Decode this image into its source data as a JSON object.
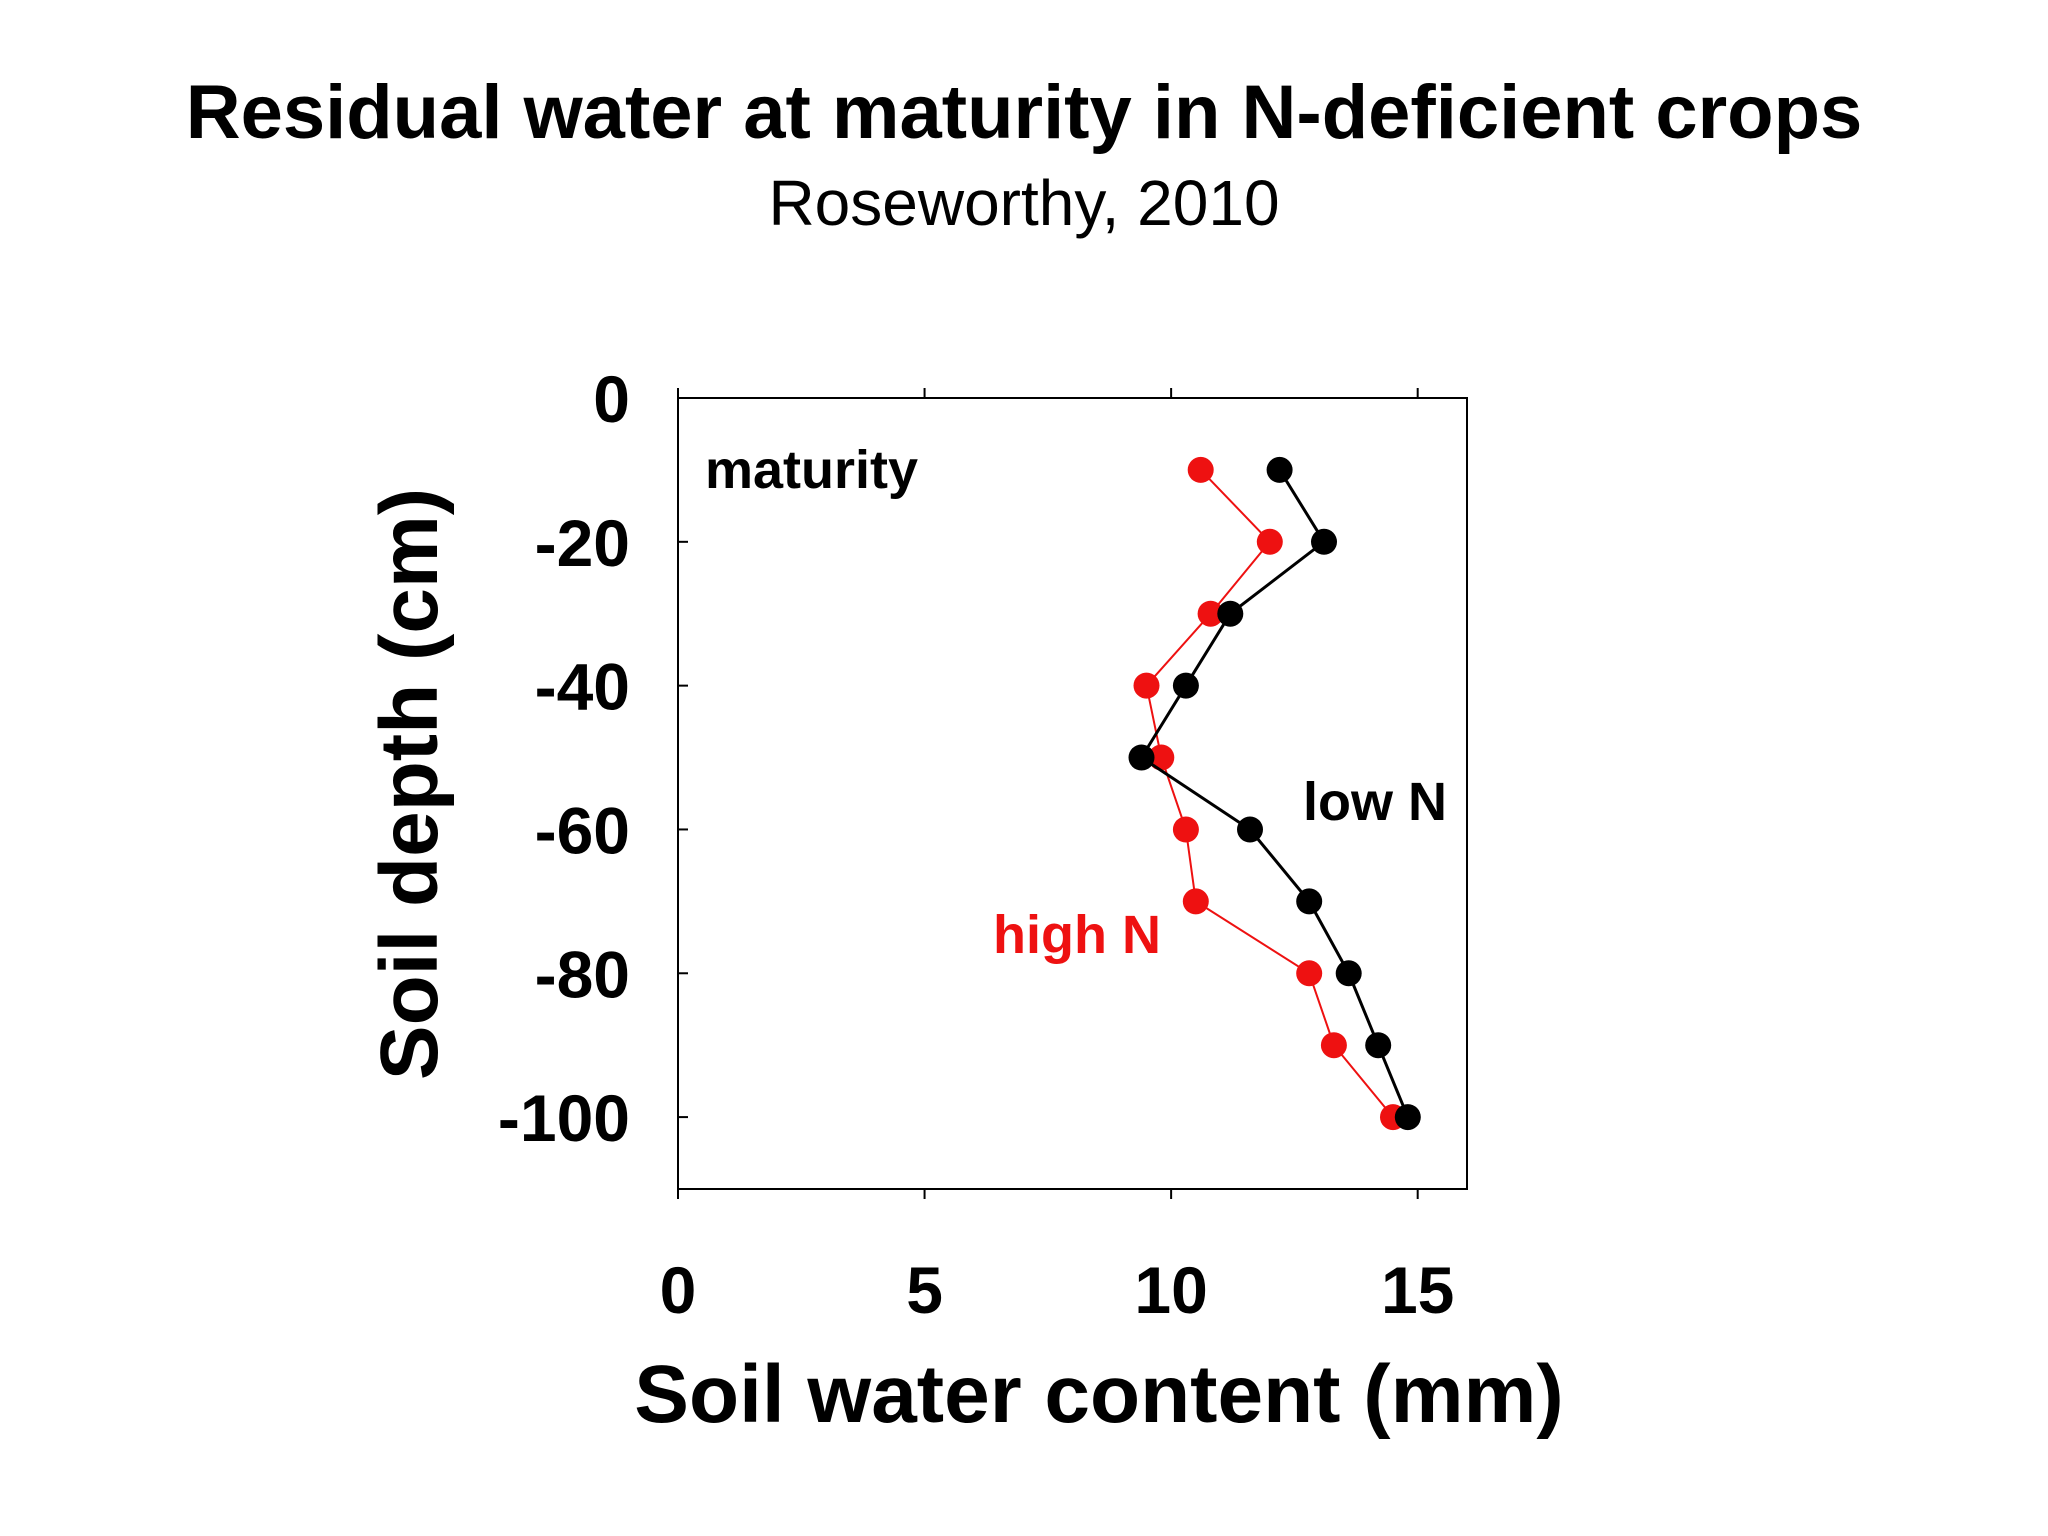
{
  "chart_data": {
    "type": "line",
    "title": "Residual water at maturity in N-deficient crops",
    "subtitle": "Roseworthy, 2010",
    "xlabel": "Soil water content (mm)",
    "ylabel": "Soil depth (cm)",
    "xlim": [
      0,
      16
    ],
    "ylim": [
      -110,
      0
    ],
    "x_ticks": [
      0,
      5,
      10,
      15
    ],
    "y_ticks": [
      0,
      -20,
      -40,
      -60,
      -80,
      -100
    ],
    "x_tick_labels": [
      "0",
      "5",
      "10",
      "15"
    ],
    "y_tick_labels": [
      "0",
      "-20",
      "-40",
      "-60",
      "-80",
      "-100"
    ],
    "grid": false,
    "series": [
      {
        "name": "low N",
        "color": "#000000",
        "points": [
          {
            "x": 12.2,
            "y": -10
          },
          {
            "x": 13.1,
            "y": -20
          },
          {
            "x": 11.2,
            "y": -30
          },
          {
            "x": 10.3,
            "y": -40
          },
          {
            "x": 9.4,
            "y": -50
          },
          {
            "x": 11.6,
            "y": -60
          },
          {
            "x": 12.8,
            "y": -70
          },
          {
            "x": 13.6,
            "y": -80
          },
          {
            "x": 14.2,
            "y": -90
          },
          {
            "x": 14.8,
            "y": -100
          }
        ]
      },
      {
        "name": "high N",
        "color": "#ee1111",
        "points": [
          {
            "x": 10.6,
            "y": -10
          },
          {
            "x": 12.0,
            "y": -20
          },
          {
            "x": 10.8,
            "y": -30
          },
          {
            "x": 9.5,
            "y": -40
          },
          {
            "x": 9.8,
            "y": -50
          },
          {
            "x": 10.3,
            "y": -60
          },
          {
            "x": 10.5,
            "y": -70
          },
          {
            "x": 12.8,
            "y": -80
          },
          {
            "x": 13.3,
            "y": -90
          },
          {
            "x": 14.5,
            "y": -100
          }
        ]
      }
    ],
    "annotations": [
      {
        "text": "maturity",
        "color": "#000000"
      },
      {
        "text": "low N",
        "color": "#000000"
      },
      {
        "text": "high N",
        "color": "#ee1111"
      }
    ]
  }
}
